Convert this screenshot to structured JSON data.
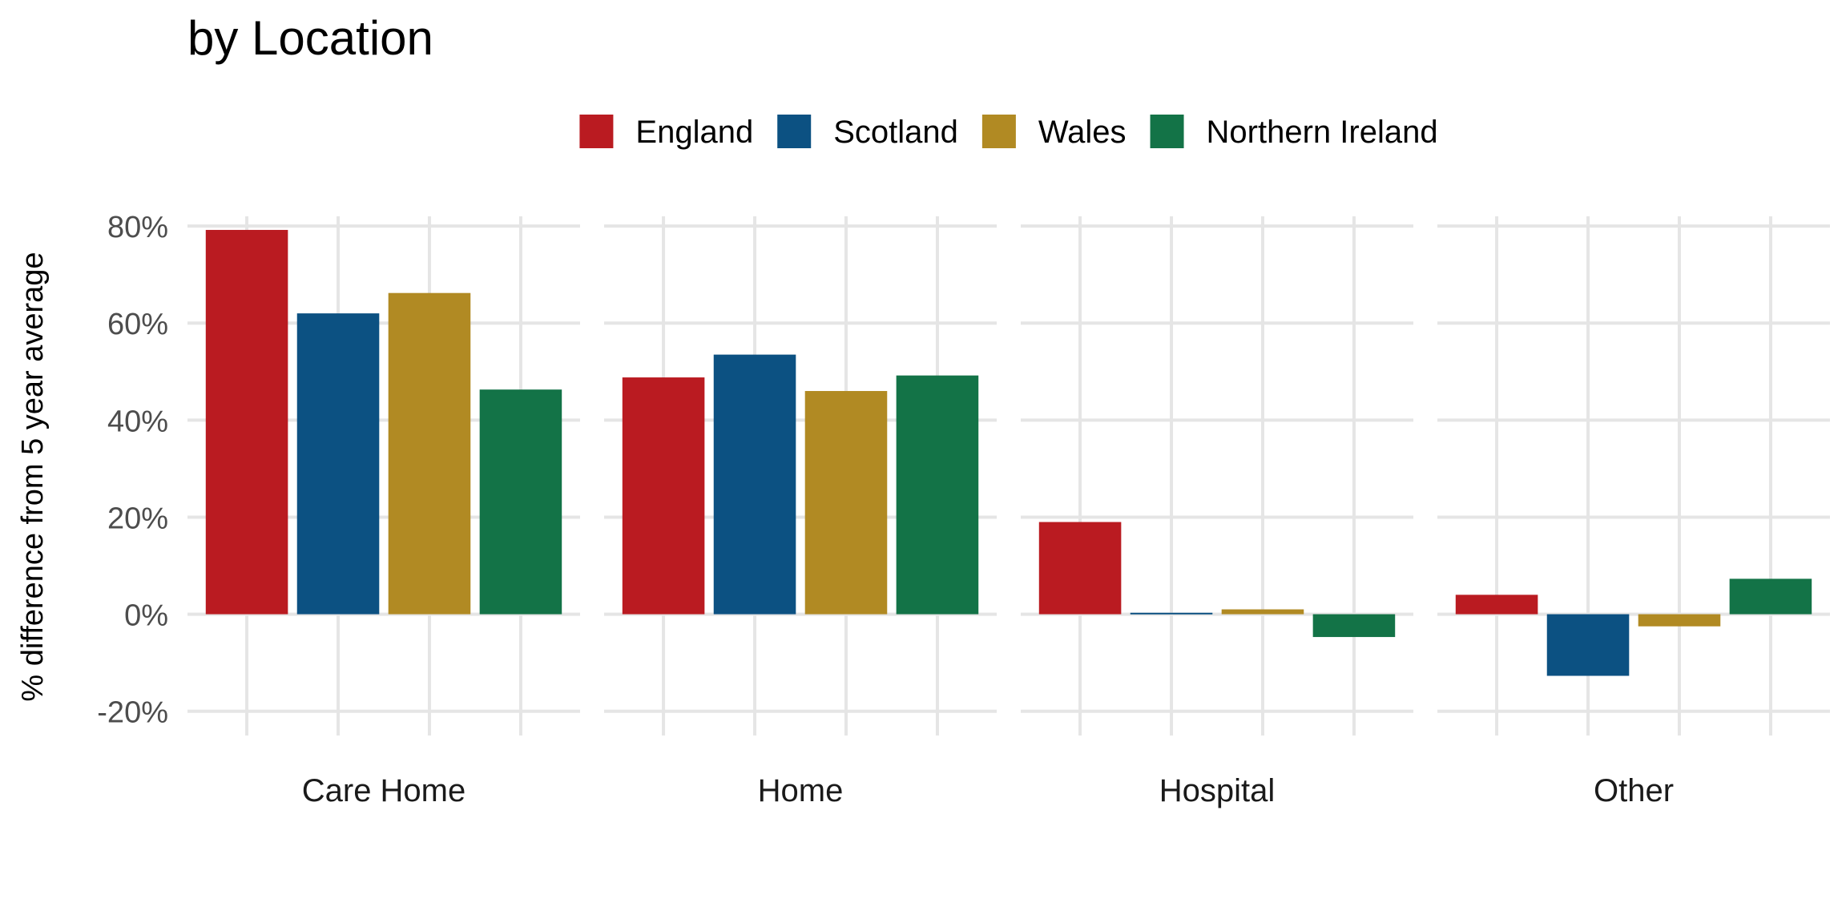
{
  "chart_data": {
    "type": "bar",
    "title": "by Location",
    "ylabel": "% difference from 5 year average",
    "xlabel": "",
    "ylim": [
      -25,
      82
    ],
    "yticks": [
      -20,
      0,
      20,
      40,
      60,
      80
    ],
    "ytick_labels": [
      "-20%",
      "0%",
      "20%",
      "40%",
      "60%",
      "80%"
    ],
    "grid": true,
    "legend_position": "top",
    "categories": [
      "Care Home",
      "Home",
      "Hospital",
      "Other"
    ],
    "series": [
      {
        "name": "England",
        "color": "#BA1B21",
        "values": [
          79.2,
          48.8,
          19.0,
          4.0
        ]
      },
      {
        "name": "Scotland",
        "color": "#0C5182",
        "values": [
          62.0,
          53.5,
          0.3,
          -12.7
        ]
      },
      {
        "name": "Wales",
        "color": "#B18A23",
        "values": [
          66.2,
          46.0,
          1.0,
          -2.5
        ]
      },
      {
        "name": "Northern Ireland",
        "color": "#137347",
        "values": [
          46.3,
          49.2,
          -4.7,
          7.3
        ]
      }
    ]
  }
}
